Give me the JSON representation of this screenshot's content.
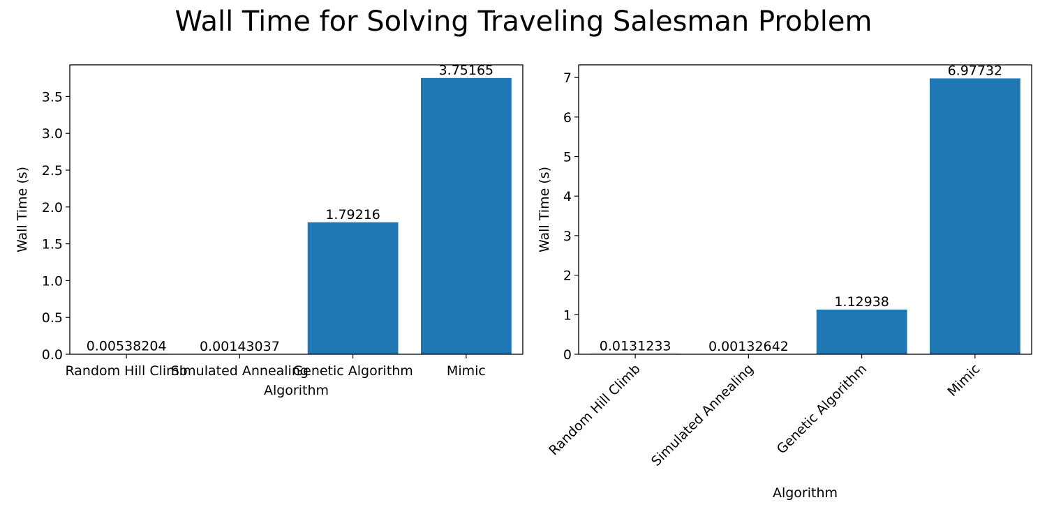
{
  "figure": {
    "title": "Wall Time for Solving Traveling Salesman Problem"
  },
  "chart_data": [
    {
      "type": "bar",
      "categories": [
        "Random Hill Climb",
        "Simulated Annealing",
        "Genetic Algorithm",
        "Mimic"
      ],
      "values": [
        0.00538204,
        0.00143037,
        1.79216,
        3.75165
      ],
      "value_labels": [
        "0.00538204",
        "0.00143037",
        "1.79216",
        "3.75165"
      ],
      "xlabel": "Algorithm",
      "ylabel": "Wall Time (s)",
      "ylim": [
        0,
        3.93
      ],
      "yticks": [
        0.0,
        0.5,
        1.0,
        1.5,
        2.0,
        2.5,
        3.0,
        3.5
      ],
      "ytick_labels": [
        "0.0",
        "0.5",
        "1.0",
        "1.5",
        "2.0",
        "2.5",
        "3.0",
        "3.5"
      ],
      "xtick_rotation": 0,
      "bar_color": "#1f77b4",
      "grid": false
    },
    {
      "type": "bar",
      "categories": [
        "Random Hill Climb",
        "Simulated Annealing",
        "Genetic Algorithm",
        "Mimic"
      ],
      "values": [
        0.0131233,
        0.00132642,
        1.12938,
        6.97732
      ],
      "value_labels": [
        "0.0131233",
        "0.00132642",
        "1.12938",
        "6.97732"
      ],
      "xlabel": "Algorithm",
      "ylabel": "Wall Time (s)",
      "ylim": [
        0,
        7.32
      ],
      "yticks": [
        0,
        1,
        2,
        3,
        4,
        5,
        6,
        7
      ],
      "ytick_labels": [
        "0",
        "1",
        "2",
        "3",
        "4",
        "5",
        "6",
        "7"
      ],
      "xtick_rotation": -45,
      "bar_color": "#1f77b4",
      "grid": false
    }
  ]
}
